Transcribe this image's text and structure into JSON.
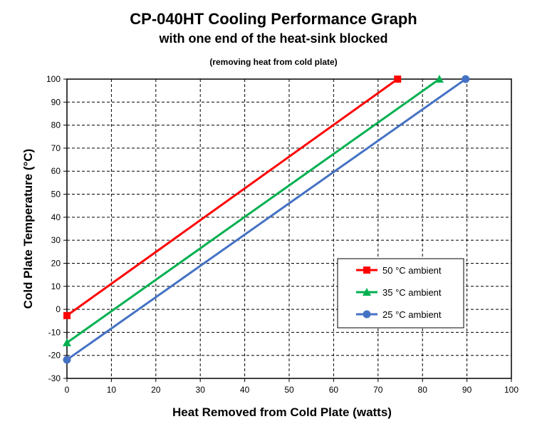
{
  "chart_data": {
    "type": "line",
    "title": "CP-040HT Cooling Performance Graph",
    "subtitle": "with one end of the heat-sink blocked",
    "note": "(removing heat from cold plate)",
    "xlabel": "Heat Removed from Cold Plate (watts)",
    "ylabel": "Cold Plate Temperature (°C)",
    "xlim": [
      0,
      100
    ],
    "ylim": [
      -30,
      100
    ],
    "xticks": [
      0,
      10,
      20,
      30,
      40,
      50,
      60,
      70,
      80,
      90,
      100
    ],
    "yticks": [
      -30,
      -20,
      -10,
      0,
      10,
      20,
      30,
      40,
      50,
      60,
      70,
      80,
      90,
      100
    ],
    "grid": true,
    "legend_position": "lower-right",
    "series": [
      {
        "name": "50 °C ambient",
        "color": "#ff0000",
        "marker": "square",
        "x": [
          0,
          74.4
        ],
        "y": [
          -2.7,
          100
        ]
      },
      {
        "name": "35 °C ambient",
        "color": "#00b050",
        "marker": "triangle",
        "x": [
          0,
          83.8
        ],
        "y": [
          -14.5,
          100
        ]
      },
      {
        "name": "25 °C ambient",
        "color": "#4472c4",
        "marker": "circle",
        "x": [
          0,
          89.7
        ],
        "y": [
          -21.9,
          100
        ]
      }
    ]
  }
}
